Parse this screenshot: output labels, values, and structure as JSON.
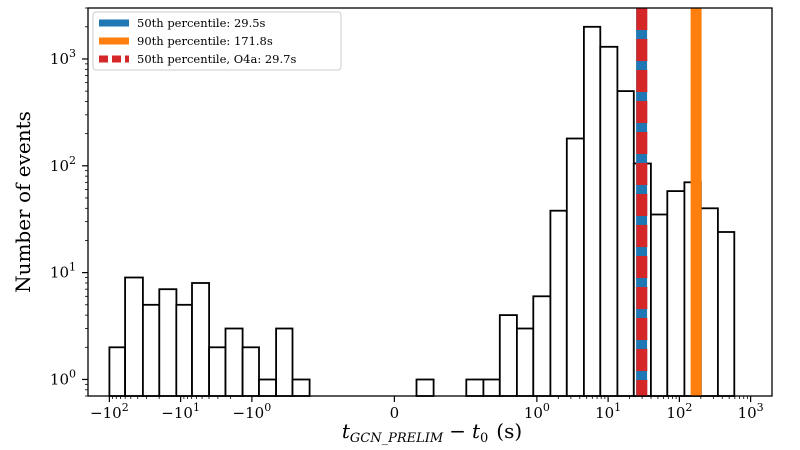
{
  "chart_data": {
    "type": "bar",
    "xlabel": {
      "t_main": "t",
      "t_sub": "GCN_PRELIM",
      "minus": "−",
      "t0_main": "t",
      "t0_sub": "0",
      "unit": "(s)"
    },
    "ylabel": "Number of events",
    "yscale": "log",
    "xscale": "symlog",
    "ylim": [
      0.7,
      3000
    ],
    "y_ticks": [
      {
        "value": 1,
        "base": "10",
        "exp": "0"
      },
      {
        "value": 10,
        "base": "10",
        "exp": "1"
      },
      {
        "value": 100,
        "base": "10",
        "exp": "2"
      },
      {
        "value": 1000,
        "base": "10",
        "exp": "3"
      }
    ],
    "x_ticks": [
      {
        "pos": -4,
        "base": "−10",
        "exp": "2"
      },
      {
        "pos": -3,
        "base": "−10",
        "exp": "1"
      },
      {
        "pos": -2,
        "base": "−10",
        "exp": "0"
      },
      {
        "pos": 0,
        "base": "0",
        "exp": ""
      },
      {
        "pos": 2,
        "base": "10",
        "exp": "0"
      },
      {
        "pos": 3,
        "base": "10",
        "exp": "1"
      },
      {
        "pos": 4,
        "base": "10",
        "exp": "2"
      },
      {
        "pos": 5,
        "base": "10",
        "exp": "3"
      }
    ],
    "xlim": [
      -4.3,
      5.3
    ],
    "bins": [
      {
        "x0": -4.0,
        "x1": -3.78,
        "count": 2
      },
      {
        "x0": -3.78,
        "x1": -3.53,
        "count": 9
      },
      {
        "x0": -3.53,
        "x1": -3.3,
        "count": 5
      },
      {
        "x0": -3.3,
        "x1": -3.06,
        "count": 7
      },
      {
        "x0": -3.06,
        "x1": -2.84,
        "count": 5
      },
      {
        "x0": -2.84,
        "x1": -2.6,
        "count": 8
      },
      {
        "x0": -2.6,
        "x1": -2.37,
        "count": 2
      },
      {
        "x0": -2.37,
        "x1": -2.13,
        "count": 3
      },
      {
        "x0": -2.13,
        "x1": -1.9,
        "count": 2
      },
      {
        "x0": -1.9,
        "x1": -1.66,
        "count": 1
      },
      {
        "x0": -1.66,
        "x1": -1.43,
        "count": 3
      },
      {
        "x0": -1.43,
        "x1": -1.19,
        "count": 1
      },
      {
        "x0": 0.31,
        "x1": 0.55,
        "count": 1
      },
      {
        "x0": 1.01,
        "x1": 1.25,
        "count": 1
      },
      {
        "x0": 1.25,
        "x1": 1.48,
        "count": 1
      },
      {
        "x0": 1.48,
        "x1": 1.72,
        "count": 4
      },
      {
        "x0": 1.72,
        "x1": 1.95,
        "count": 3
      },
      {
        "x0": 1.95,
        "x1": 2.19,
        "count": 6
      },
      {
        "x0": 2.19,
        "x1": 2.42,
        "count": 38
      },
      {
        "x0": 2.42,
        "x1": 2.66,
        "count": 180
      },
      {
        "x0": 2.66,
        "x1": 2.89,
        "count": 2000
      },
      {
        "x0": 2.89,
        "x1": 3.13,
        "count": 1300
      },
      {
        "x0": 3.13,
        "x1": 3.36,
        "count": 500
      },
      {
        "x0": 3.36,
        "x1": 3.6,
        "count": 105
      },
      {
        "x0": 3.6,
        "x1": 3.83,
        "count": 35
      },
      {
        "x0": 3.83,
        "x1": 4.07,
        "count": 58
      },
      {
        "x0": 4.07,
        "x1": 4.3,
        "count": 70
      },
      {
        "x0": 4.3,
        "x1": 4.54,
        "count": 40
      },
      {
        "x0": 4.54,
        "x1": 4.77,
        "count": 24
      }
    ],
    "vlines": [
      {
        "name": "50th percentile: 29.5s",
        "value_s": 29.5,
        "color": "#1f77b4",
        "style": "solid"
      },
      {
        "name": "90th percentile: 171.8s",
        "value_s": 171.8,
        "color": "#ff7f0e",
        "style": "solid"
      },
      {
        "name": "50th percentile, O4a: 29.7s",
        "value_s": 29.7,
        "color": "#d62728",
        "style": "dashed"
      }
    ],
    "legend_position": "top-left",
    "grid": false
  }
}
